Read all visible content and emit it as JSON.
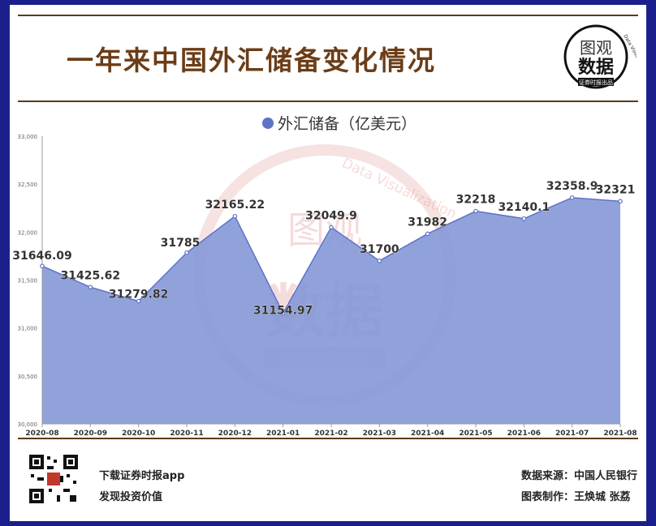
{
  "header": {
    "title": "一年来中国外汇储备变化情况",
    "logo_line1": "图观",
    "logo_line2": "数据",
    "logo_sub": "证券时报出品",
    "logo_arc": "Data Visualization"
  },
  "footer": {
    "app_line1": "下载证券时报app",
    "app_line2": "发现投资价值",
    "source": "数据来源：中国人民银行",
    "author": "图表制作：王焕城 张荔"
  },
  "colors": {
    "background": "#1b1f8c",
    "fill": "#8295d6",
    "line": "#5d72c8",
    "title": "#6b3d17",
    "watermark": "#e08a8a"
  },
  "chart_data": {
    "type": "area",
    "legend": "外汇储备（亿美元）",
    "legend_position": "top-center",
    "categories": [
      "2020-08",
      "2020-09",
      "2020-10",
      "2020-11",
      "2020-12",
      "2021-01",
      "2021-02",
      "2021-03",
      "2021-04",
      "2021-05",
      "2021-06",
      "2021-07",
      "2021-08"
    ],
    "series": [
      {
        "name": "外汇储备（亿美元）",
        "values": [
          31646.09,
          31425.62,
          31279.82,
          31785,
          32165.22,
          31154.97,
          32049.9,
          31700,
          31982,
          32218,
          32140.1,
          32358.9,
          32321
        ],
        "labels": [
          "31646.09",
          "31425.62",
          "31279.82",
          "31785",
          "32165.22",
          "31154.97",
          "32049.9",
          "31700",
          "31982",
          "32218",
          "32140.1",
          "32358.9",
          "32321"
        ]
      }
    ],
    "ylim": [
      30000,
      33000
    ],
    "yticks": [
      "30,000",
      "30,500",
      "31,000",
      "31,500",
      "32,000",
      "32,500",
      "33,000"
    ],
    "grid": false
  },
  "watermark": {
    "line1": "图观",
    "line2": "数据",
    "sub": "证券时报出品",
    "arc": "Data Visualization"
  }
}
